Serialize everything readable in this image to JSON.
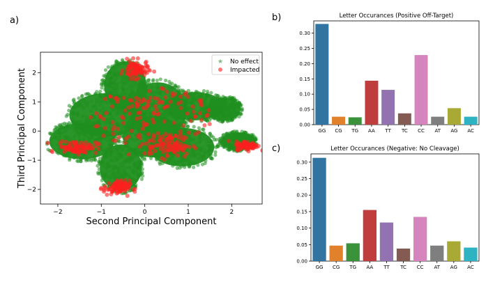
{
  "panel_labels": {
    "a": "a)",
    "b": "b)",
    "c": "c)"
  },
  "chart_data": [
    {
      "type": "scatter",
      "panel": "a",
      "title": "",
      "xlabel": "Second Principal Component",
      "ylabel": "Third Principal Component",
      "xlim": [
        -2.4,
        2.7
      ],
      "ylim": [
        -2.5,
        2.7
      ],
      "xticks": [
        -2,
        -1,
        0,
        1,
        2
      ],
      "yticks": [
        -2,
        -1,
        0,
        1,
        2
      ],
      "legend": {
        "placement": "top-right",
        "entries": [
          "No effect",
          "Impacted"
        ]
      },
      "colors": {
        "no_effect": "#1f8f1f",
        "impacted": "#ff2020"
      },
      "series": [
        {
          "name": "No effect",
          "marker": "star",
          "blobs": [
            {
              "cx": -0.45,
              "cy": 1.55,
              "rx": 0.55,
              "ry": 0.95
            },
            {
              "cx": -0.9,
              "cy": 0.55,
              "rx": 0.95,
              "ry": 0.85
            },
            {
              "cx": -1.45,
              "cy": -0.35,
              "rx": 0.85,
              "ry": 0.7
            },
            {
              "cx": -0.55,
              "cy": -1.25,
              "rx": 0.55,
              "ry": 0.9
            },
            {
              "cx": 0.3,
              "cy": 0.7,
              "rx": 0.75,
              "ry": 1.1
            },
            {
              "cx": 0.85,
              "cy": -0.55,
              "rx": 0.85,
              "ry": 0.75
            },
            {
              "cx": 1.15,
              "cy": 0.85,
              "rx": 0.75,
              "ry": 0.55
            },
            {
              "cx": 0.2,
              "cy": -0.2,
              "rx": 0.8,
              "ry": 0.8
            },
            {
              "cx": 1.85,
              "cy": 0.75,
              "rx": 0.4,
              "ry": 0.45
            },
            {
              "cx": 2.15,
              "cy": -0.35,
              "rx": 0.45,
              "ry": 0.35
            }
          ]
        },
        {
          "name": "Impacted",
          "marker": "circle",
          "clusters": [
            {
              "cx": -0.2,
              "cy": 2.1,
              "rx": 0.28,
              "ry": 0.3
            },
            {
              "cx": -1.55,
              "cy": -0.55,
              "rx": 0.45,
              "ry": 0.22
            },
            {
              "cx": -0.65,
              "cy": -1.95,
              "rx": 0.3,
              "ry": 0.25
            },
            {
              "cx": 0.55,
              "cy": -0.5,
              "rx": 0.55,
              "ry": 0.4
            },
            {
              "cx": 0.15,
              "cy": 0.45,
              "rx": 1.4,
              "ry": 1.1
            },
            {
              "cx": 2.35,
              "cy": -0.5,
              "rx": 0.25,
              "ry": 0.15
            }
          ]
        }
      ]
    },
    {
      "type": "bar",
      "panel": "b",
      "title": "Letter Occurances (Positive Off-Target)",
      "xlabel": "",
      "ylabel": "",
      "categories": [
        "GG",
        "CG",
        "TG",
        "AA",
        "TT",
        "TC",
        "CC",
        "AT",
        "AG",
        "AC"
      ],
      "values": [
        0.33,
        0.026,
        0.024,
        0.144,
        0.114,
        0.037,
        0.228,
        0.026,
        0.054,
        0.026
      ],
      "ylim": [
        0,
        0.34
      ],
      "yticks": [
        0.0,
        0.05,
        0.1,
        0.15,
        0.2,
        0.25,
        0.3
      ],
      "ytick_labels": [
        "0.00",
        "0.05",
        "0.10",
        "0.15",
        "0.20",
        "0.25",
        "0.30"
      ],
      "colors": [
        "#3274a1",
        "#e1812c",
        "#3a923a",
        "#c03d3e",
        "#9372b2",
        "#845b53",
        "#d684bd",
        "#7f7f7f",
        "#a9aa35",
        "#2eb3c2"
      ]
    },
    {
      "type": "bar",
      "panel": "c",
      "title": "Letter Occurances (Negative: No Cleavage)",
      "xlabel": "",
      "ylabel": "",
      "categories": [
        "GG",
        "CG",
        "TG",
        "AA",
        "TT",
        "TC",
        "CC",
        "AT",
        "AG",
        "AC"
      ],
      "values": [
        0.313,
        0.047,
        0.054,
        0.155,
        0.117,
        0.038,
        0.134,
        0.047,
        0.06,
        0.041
      ],
      "ylim": [
        0,
        0.325
      ],
      "yticks": [
        0.0,
        0.05,
        0.1,
        0.15,
        0.2,
        0.25,
        0.3
      ],
      "ytick_labels": [
        "0.00",
        "0.05",
        "0.10",
        "0.15",
        "0.20",
        "0.25",
        "0.30"
      ],
      "colors": [
        "#3274a1",
        "#e1812c",
        "#3a923a",
        "#c03d3e",
        "#9372b2",
        "#845b53",
        "#d684bd",
        "#7f7f7f",
        "#a9aa35",
        "#2eb3c2"
      ]
    }
  ]
}
